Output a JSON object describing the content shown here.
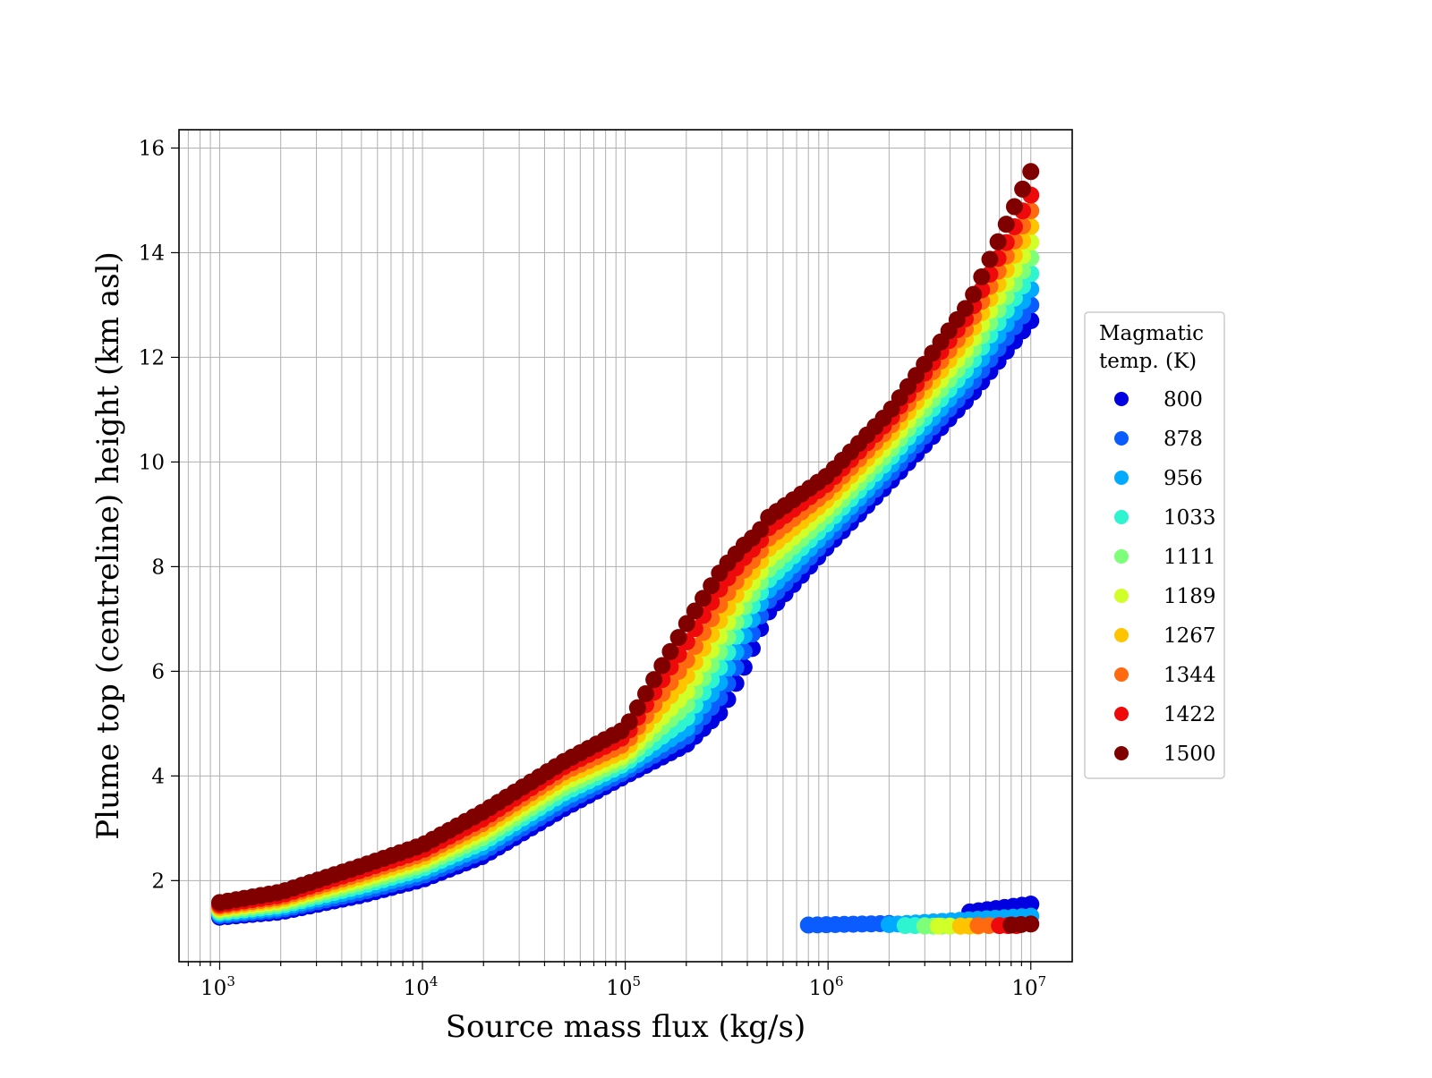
{
  "chart_data": {
    "type": "scatter",
    "title": "",
    "xlabel": "Source mass flux (kg/s)",
    "ylabel": "Plume top (centreline) height (km asl)",
    "xscale": "log",
    "xlim": [
      630,
      16000000
    ],
    "ylim": [
      0.45,
      16.35
    ],
    "x_ticks": [
      {
        "base": "10",
        "exp": "3",
        "value": 1000
      },
      {
        "base": "10",
        "exp": "4",
        "value": 10000
      },
      {
        "base": "10",
        "exp": "5",
        "value": 100000
      },
      {
        "base": "10",
        "exp": "6",
        "value": 1000000
      },
      {
        "base": "10",
        "exp": "7",
        "value": 10000000
      }
    ],
    "y_ticks": [
      "2",
      "4",
      "6",
      "8",
      "10",
      "12",
      "14",
      "16"
    ],
    "grid": true,
    "legend": {
      "title_lines": [
        "Magmatic",
        "temp. (K)"
      ],
      "placement": "outside-right"
    },
    "colormap": "jet",
    "series": [
      {
        "name": "800",
        "color": "#0000e0",
        "main_curve": {
          "x": [
            1000,
            2000,
            5000,
            10000,
            20000,
            50000,
            100000,
            200000,
            300000,
            400000,
            450000,
            500000,
            1000000,
            2000000,
            5000000,
            10000000
          ],
          "y": [
            1.3,
            1.4,
            1.72,
            2.02,
            2.47,
            3.38,
            4.0,
            4.6,
            5.25,
            6.2,
            6.7,
            7.1,
            8.4,
            9.6,
            11.25,
            12.7
          ]
        },
        "branch": {
          "x": [
            5000000,
            10000000
          ],
          "y": [
            1.4,
            1.55
          ]
        }
      },
      {
        "name": "878",
        "color": "#0a5cff",
        "main_curve": {
          "x": [
            1000,
            2000,
            5000,
            10000,
            20000,
            50000,
            100000,
            200000,
            300000,
            400000,
            450000,
            500000,
            1000000,
            2000000,
            5000000,
            10000000
          ],
          "y": [
            1.33,
            1.44,
            1.78,
            2.09,
            2.56,
            3.48,
            4.08,
            4.75,
            5.55,
            6.5,
            6.95,
            7.32,
            8.55,
            9.75,
            11.45,
            13.0
          ]
        },
        "branch": {
          "x": [
            800000,
            2000000
          ],
          "y": [
            1.15,
            1.18
          ]
        }
      },
      {
        "name": "956",
        "color": "#00aaff",
        "main_curve": {
          "x": [
            1000,
            2000,
            5000,
            10000,
            20000,
            50000,
            100000,
            200000,
            300000,
            400000,
            450000,
            500000,
            1000000,
            2000000,
            5000000,
            10000000
          ],
          "y": [
            1.36,
            1.48,
            1.84,
            2.16,
            2.65,
            3.58,
            4.16,
            4.9,
            5.85,
            6.8,
            7.2,
            7.52,
            8.7,
            9.9,
            11.65,
            13.3
          ]
        },
        "branch": {
          "x": [
            2000000,
            10000000
          ],
          "y": [
            1.16,
            1.32
          ]
        }
      },
      {
        "name": "1033",
        "color": "#2ef5d0",
        "main_curve": {
          "x": [
            1000,
            2000,
            5000,
            10000,
            20000,
            50000,
            100000,
            200000,
            300000,
            400000,
            450000,
            500000,
            1000000,
            2000000,
            5000000,
            10000000
          ],
          "y": [
            1.39,
            1.52,
            1.9,
            2.23,
            2.74,
            3.68,
            4.24,
            5.1,
            6.15,
            7.1,
            7.42,
            7.72,
            8.85,
            10.05,
            11.85,
            13.6
          ]
        },
        "branch": {
          "x": [
            2400000,
            3000000
          ],
          "y": [
            1.14,
            1.14
          ]
        }
      },
      {
        "name": "1111",
        "color": "#7dff7a",
        "main_curve": {
          "x": [
            1000,
            2000,
            5000,
            10000,
            20000,
            50000,
            100000,
            200000,
            300000,
            400000,
            450000,
            500000,
            1000000,
            2000000,
            5000000,
            10000000
          ],
          "y": [
            1.42,
            1.56,
            1.96,
            2.3,
            2.83,
            3.78,
            4.32,
            5.35,
            6.45,
            7.35,
            7.62,
            7.92,
            9.0,
            10.2,
            12.05,
            13.9
          ]
        },
        "branch": {
          "x": [
            3000000,
            4000000
          ],
          "y": [
            1.13,
            1.13
          ]
        }
      },
      {
        "name": "1189",
        "color": "#d0ff2a",
        "main_curve": {
          "x": [
            1000,
            2000,
            5000,
            10000,
            20000,
            50000,
            100000,
            200000,
            300000,
            400000,
            450000,
            500000,
            1000000,
            2000000,
            5000000,
            10000000
          ],
          "y": [
            1.45,
            1.6,
            2.02,
            2.37,
            2.92,
            3.88,
            4.4,
            5.6,
            6.75,
            7.58,
            7.82,
            8.12,
            9.15,
            10.35,
            12.25,
            14.2
          ]
        },
        "branch": {
          "x": [
            3500000,
            4500000
          ],
          "y": [
            1.13,
            1.13
          ]
        }
      },
      {
        "name": "1267",
        "color": "#ffc400",
        "main_curve": {
          "x": [
            1000,
            2000,
            5000,
            10000,
            20000,
            50000,
            100000,
            200000,
            300000,
            400000,
            450000,
            500000,
            1000000,
            2000000,
            5000000,
            10000000
          ],
          "y": [
            1.48,
            1.64,
            2.08,
            2.44,
            3.01,
            3.98,
            4.5,
            5.9,
            7.05,
            7.8,
            8.02,
            8.32,
            9.3,
            10.5,
            12.45,
            14.5
          ]
        },
        "branch": {
          "x": [
            4500000,
            5500000
          ],
          "y": [
            1.13,
            1.13
          ]
        }
      },
      {
        "name": "1344",
        "color": "#ff6a10",
        "main_curve": {
          "x": [
            1000,
            2000,
            5000,
            10000,
            20000,
            50000,
            100000,
            200000,
            300000,
            400000,
            450000,
            500000,
            1000000,
            2000000,
            5000000,
            10000000
          ],
          "y": [
            1.51,
            1.68,
            2.14,
            2.51,
            3.1,
            4.08,
            4.62,
            6.2,
            7.35,
            8.02,
            8.22,
            8.52,
            9.45,
            10.65,
            12.65,
            14.8
          ]
        },
        "branch": {
          "x": [
            5500000,
            7000000
          ],
          "y": [
            1.14,
            1.14
          ]
        }
      },
      {
        "name": "1422",
        "color": "#ee0a0a",
        "main_curve": {
          "x": [
            1000,
            2000,
            5000,
            10000,
            20000,
            50000,
            100000,
            200000,
            300000,
            400000,
            450000,
            500000,
            1000000,
            2000000,
            5000000,
            10000000
          ],
          "y": [
            1.54,
            1.72,
            2.2,
            2.58,
            3.19,
            4.18,
            4.76,
            6.55,
            7.65,
            8.25,
            8.42,
            8.72,
            9.6,
            10.8,
            12.85,
            15.1
          ]
        },
        "branch": {
          "x": [
            7000000,
            8500000
          ],
          "y": [
            1.14,
            1.14
          ]
        }
      },
      {
        "name": "1500",
        "color": "#800000",
        "main_curve": {
          "x": [
            1000,
            2000,
            5000,
            10000,
            20000,
            50000,
            100000,
            200000,
            300000,
            400000,
            450000,
            500000,
            1000000,
            2000000,
            5000000,
            10000000
          ],
          "y": [
            1.58,
            1.78,
            2.28,
            2.68,
            3.32,
            4.28,
            4.9,
            6.9,
            7.95,
            8.48,
            8.62,
            8.92,
            9.75,
            10.95,
            13.05,
            15.55
          ]
        },
        "branch": {
          "x": [
            8000000,
            10000000
          ],
          "y": [
            1.15,
            1.17
          ]
        }
      }
    ]
  }
}
